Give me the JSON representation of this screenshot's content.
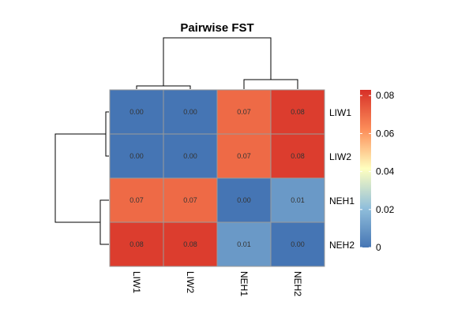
{
  "chart_data": {
    "type": "heatmap",
    "title": "Pairwise FST",
    "rows": [
      "LIW1",
      "LIW2",
      "NEH1",
      "NEH2"
    ],
    "columns": [
      "LIW1",
      "LIW2",
      "NEH1",
      "NEH2"
    ],
    "values": [
      [
        0.0,
        0.0,
        0.07,
        0.08
      ],
      [
        0.0,
        0.0,
        0.07,
        0.08
      ],
      [
        0.07,
        0.07,
        0.0,
        0.01
      ],
      [
        0.08,
        0.08,
        0.01,
        0.0
      ]
    ],
    "cell_labels": [
      [
        "0.00",
        "0.00",
        "0.07",
        "0.08"
      ],
      [
        "0.00",
        "0.00",
        "0.07",
        "0.08"
      ],
      [
        "0.07",
        "0.07",
        "0.00",
        "0.01"
      ],
      [
        "0.08",
        "0.08",
        "0.01",
        "0.00"
      ]
    ],
    "color_scale": {
      "min": 0,
      "max": 0.083,
      "ticks": [
        0,
        0.02,
        0.04,
        0.06,
        0.08
      ],
      "tick_labels": [
        "0",
        "0.02",
        "0.04",
        "0.06",
        "0.08"
      ],
      "colors": [
        "#4575b4",
        "#91bfdb",
        "#ffffbf",
        "#fc8d59",
        "#d73027"
      ]
    },
    "dendrogram": {
      "rows": "(LIW1,LIW2),(NEH1,NEH2)",
      "columns": "(LIW1,LIW2),(NEH1,NEH2)"
    },
    "legend_position": "right"
  }
}
